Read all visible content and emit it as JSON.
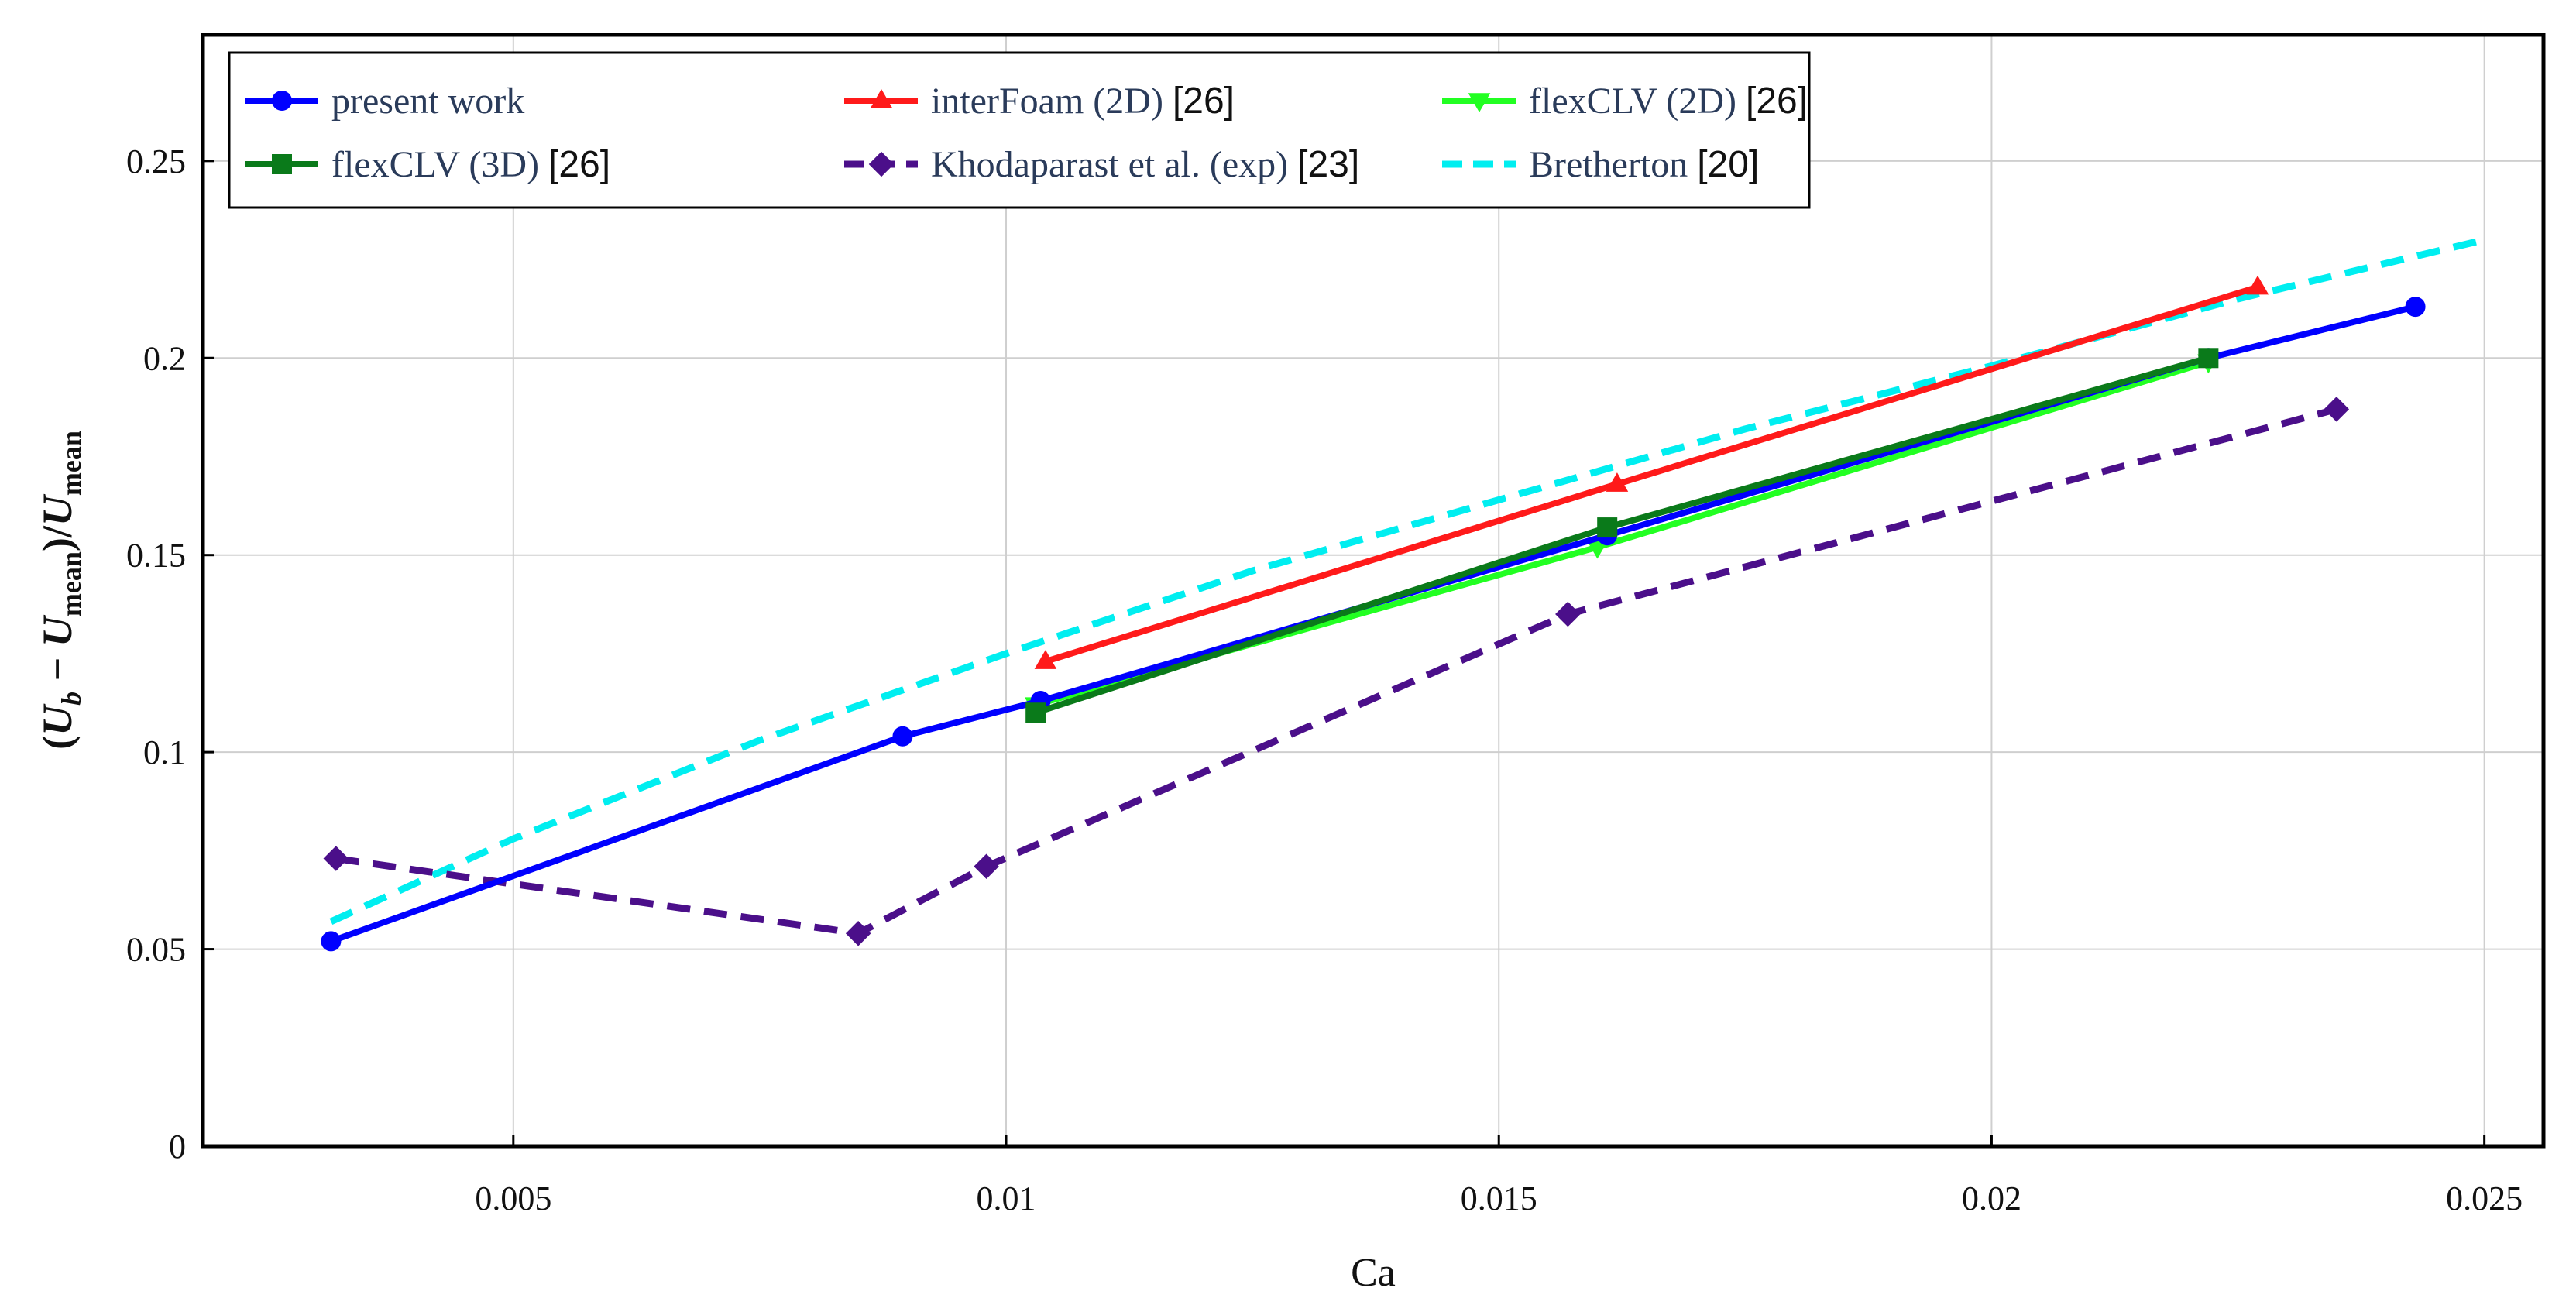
{
  "chart_data": {
    "type": "line",
    "xlabel": "Ca",
    "ylabel": {
      "open": "(",
      "u1": "U",
      "sub1": "b",
      "minus": " − ",
      "u2": "U",
      "sub2": "mean",
      "close": ")/",
      "u3": "U",
      "sub3": "mean"
    },
    "xlim": [
      0.00185,
      0.0256
    ],
    "ylim": [
      0,
      0.282
    ],
    "xticks": [
      0.005,
      0.01,
      0.015,
      0.02,
      0.025
    ],
    "xtick_labels": [
      "0.005",
      "0.01",
      "0.015",
      "0.02",
      "0.025"
    ],
    "yticks": [
      0,
      0.05,
      0.1,
      0.15,
      0.2,
      0.25
    ],
    "ytick_labels": [
      "0",
      "0.05",
      "0.1",
      "0.15",
      "0.2",
      "0.25"
    ],
    "grid": true,
    "legend_position": "top-left",
    "series": [
      {
        "name": "present work",
        "ref": "",
        "color": "#0000ff",
        "dash": "solid",
        "marker": "circle",
        "x": [
          0.00315,
          0.00895,
          0.01035,
          0.0161,
          0.0222,
          0.0243
        ],
        "y": [
          0.052,
          0.104,
          0.113,
          0.155,
          0.2,
          0.213
        ]
      },
      {
        "name": "interFoam (2D)",
        "ref": "[26]",
        "color": "#ff1a1a",
        "dash": "solid",
        "marker": "triangle-up",
        "x": [
          0.0104,
          0.0162,
          0.0227
        ],
        "y": [
          0.123,
          0.168,
          0.218
        ]
      },
      {
        "name": "flexCLV (2D)",
        "ref": "[26]",
        "color": "#22ff22",
        "dash": "solid",
        "marker": "triangle-down",
        "x": [
          0.0103,
          0.016,
          0.0222
        ],
        "y": [
          0.112,
          0.152,
          0.199
        ]
      },
      {
        "name": "flexCLV (3D)",
        "ref": "[26]",
        "color": "#0a7a1a",
        "dash": "solid",
        "marker": "square",
        "x": [
          0.0103,
          0.0161,
          0.0222
        ],
        "y": [
          0.11,
          0.157,
          0.2
        ]
      },
      {
        "name": "Khodaparast et al. (exp)",
        "ref": "[23]",
        "color": "#4b0f8a",
        "dash": "dashed",
        "marker": "diamond",
        "x": [
          0.0032,
          0.0085,
          0.0098,
          0.0157,
          0.0235
        ],
        "y": [
          0.073,
          0.054,
          0.071,
          0.135,
          0.187
        ]
      },
      {
        "name": "Bretherton",
        "ref": "[20]",
        "color": "#00eef0",
        "dash": "dashed",
        "marker": "none",
        "x": [
          0.00315,
          0.005,
          0.0075,
          0.01,
          0.0125,
          0.015,
          0.0175,
          0.02,
          0.0225,
          0.025
        ],
        "y": [
          0.057,
          0.078,
          0.103,
          0.125,
          0.146,
          0.164,
          0.182,
          0.198,
          0.215,
          0.23
        ]
      }
    ]
  }
}
